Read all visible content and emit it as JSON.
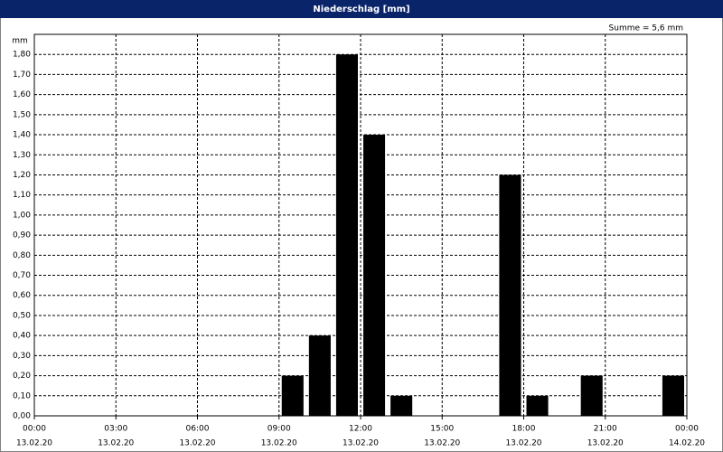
{
  "chart_data": {
    "type": "bar",
    "title": "Niederschlag [mm]",
    "ylabel": "mm",
    "annotation": "Summe = 5,6 mm",
    "x": [
      9,
      10,
      11,
      12,
      13,
      17,
      18,
      20,
      23
    ],
    "values": [
      0.2,
      0.4,
      1.8,
      1.4,
      0.1,
      1.2,
      0.1,
      0.2,
      0.2
    ],
    "color": "#000000",
    "xlim": [
      0,
      24
    ],
    "xticks": [
      {
        "value": 0,
        "label": "00:00"
      },
      {
        "value": 3,
        "label": "03:00"
      },
      {
        "value": 6,
        "label": "06:00"
      },
      {
        "value": 9,
        "label": "09:00"
      },
      {
        "value": 12,
        "label": "12:00"
      },
      {
        "value": 15,
        "label": "15:00"
      },
      {
        "value": 18,
        "label": "18:00"
      },
      {
        "value": 21,
        "label": "21:00"
      },
      {
        "value": 24,
        "label": "00:00"
      }
    ],
    "xtick_dates": [
      "13.02.20",
      "13.02.20",
      "13.02.20",
      "13.02.20",
      "13.02.20",
      "13.02.20",
      "13.02.20",
      "13.02.20",
      "14.02.20"
    ],
    "ylim": [
      0,
      1.9
    ],
    "yticks": [
      {
        "value": 0,
        "label": "0,00"
      },
      {
        "value": 0.1,
        "label": "0,10"
      },
      {
        "value": 0.2,
        "label": "0,20"
      },
      {
        "value": 0.3,
        "label": "0,30"
      },
      {
        "value": 0.4,
        "label": "0,40"
      },
      {
        "value": 0.5,
        "label": "0,50"
      },
      {
        "value": 0.6,
        "label": "0,60"
      },
      {
        "value": 0.7,
        "label": "0,70"
      },
      {
        "value": 0.8,
        "label": "0,80"
      },
      {
        "value": 0.9,
        "label": "0,90"
      },
      {
        "value": 1.0,
        "label": "1,00"
      },
      {
        "value": 1.1,
        "label": "1,10"
      },
      {
        "value": 1.2,
        "label": "1,20"
      },
      {
        "value": 1.3,
        "label": "1,30"
      },
      {
        "value": 1.4,
        "label": "1,40"
      },
      {
        "value": 1.5,
        "label": "1,50"
      },
      {
        "value": 1.6,
        "label": "1,60"
      },
      {
        "value": 1.7,
        "label": "1,70"
      },
      {
        "value": 1.8,
        "label": "1,80"
      }
    ],
    "grid": true
  }
}
